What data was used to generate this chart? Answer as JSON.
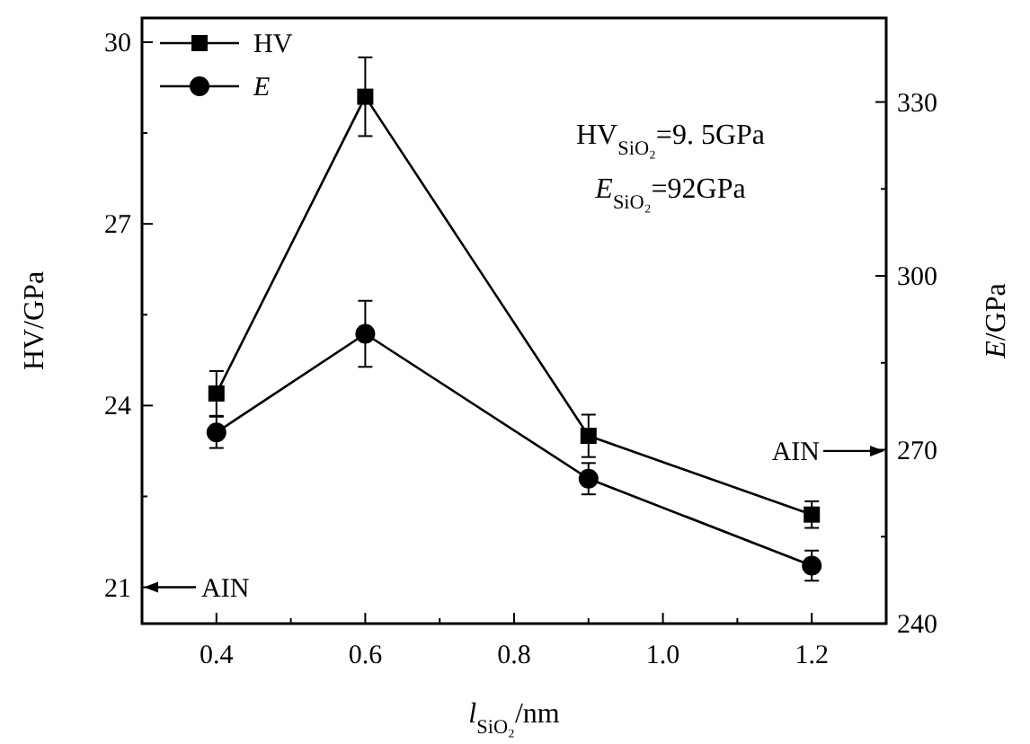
{
  "chart_data": {
    "type": "line",
    "xlabel": "l$_{SiO₂}$/nm",
    "ylabel": "HV/GPa",
    "y2label": "E/GPa",
    "x": [
      0.4,
      0.6,
      0.9,
      1.2
    ],
    "xlim": [
      0.3,
      1.3
    ],
    "xticks": [
      0.4,
      {
        "value": 0.5,
        "label": null
      },
      0.6,
      {
        "value": 0.7,
        "label": null
      },
      0.8,
      {
        "value": 0.9,
        "label": null
      },
      {
        "value": 1.0,
        "label": "1.0"
      },
      {
        "value": 1.1,
        "label": null
      },
      1.2
    ],
    "ylim": [
      20.4,
      30.4
    ],
    "yticks": [
      21,
      {
        "value": 22.5,
        "label": null
      },
      24,
      {
        "value": 25.5,
        "label": null
      },
      27,
      {
        "value": 28.5,
        "label": null
      },
      30
    ],
    "y2lim": [
      240,
      344.5
    ],
    "y2ticks": [
      240,
      {
        "value": 255,
        "label": null
      },
      270,
      {
        "value": 285,
        "label": null
      },
      300,
      {
        "value": 315,
        "label": null
      },
      330
    ],
    "series": [
      {
        "name": "HV",
        "color": "#000000",
        "marker": "square",
        "values": [
          24.2,
          29.1,
          23.5,
          22.2
        ],
        "errors": [
          0.37,
          0.65,
          0.35,
          0.22
        ]
      },
      {
        "name": "E",
        "color": "#000000",
        "marker": "circle",
        "axis": "y2",
        "values": [
          273,
          290,
          265,
          250
        ],
        "errors": [
          2.7,
          5.7,
          2.7,
          2.6
        ]
      }
    ],
    "annotations": [
      "HV$_{SiO₂}$=9. 5GPa",
      "E$_{SiO₂}$=92GPa",
      "AIN",
      "AIN"
    ],
    "legend": "top left",
    "grid": false
  }
}
